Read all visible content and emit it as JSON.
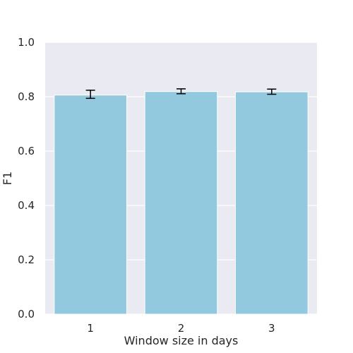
{
  "chart_data": {
    "type": "bar",
    "title": "",
    "xlabel": "Window size in days",
    "ylabel": "F1",
    "categories": [
      "1",
      "2",
      "3"
    ],
    "values": [
      0.806,
      0.819,
      0.818
    ],
    "error_low": [
      0.794,
      0.811,
      0.809
    ],
    "error_high": [
      0.824,
      0.829,
      0.828
    ],
    "ylim": [
      0,
      1.0
    ],
    "yticks": [
      "0.0",
      "0.2",
      "0.4",
      "0.6",
      "0.8",
      "1.0"
    ],
    "grid": true,
    "colors": {
      "bar": "#92c9de",
      "background": "#eaeaf2",
      "grid": "#ffffff",
      "error": "#000000"
    }
  }
}
